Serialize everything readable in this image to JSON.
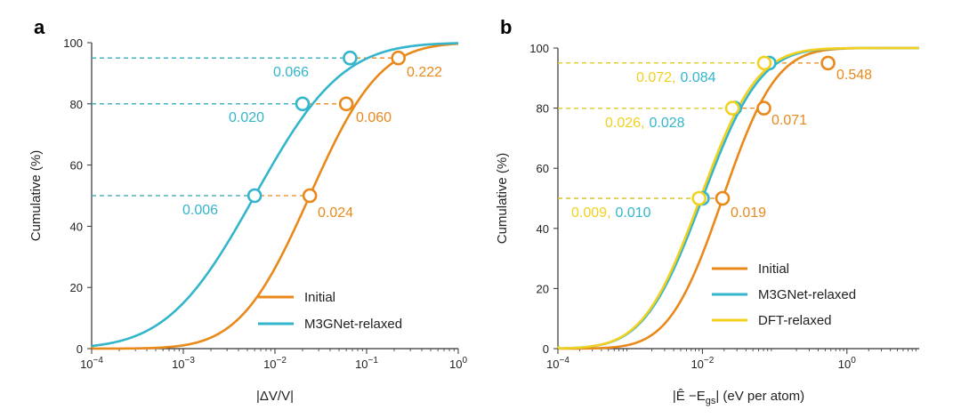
{
  "colors": {
    "initial": "#E8891A",
    "m3gnet": "#33B5CC",
    "dft": "#F2D01E"
  },
  "chart_data": [
    {
      "panel": "a",
      "type": "line",
      "xscale": "log",
      "xlim_exp": [
        -4,
        0
      ],
      "ylim": [
        0,
        100
      ],
      "xlabel": "|ΔV/V|",
      "ylabel": "Cumulative (%)",
      "xticks": [
        {
          "exp": -4,
          "label": "10",
          "sup": "−4"
        },
        {
          "exp": -3,
          "label": "10",
          "sup": "−3"
        },
        {
          "exp": -2,
          "label": "10",
          "sup": "−2"
        },
        {
          "exp": -1,
          "label": "10",
          "sup": "−1"
        },
        {
          "exp": 0,
          "label": "10",
          "sup": "0"
        }
      ],
      "yticks": [
        0,
        20,
        40,
        60,
        80,
        100
      ],
      "legend": [
        "Initial",
        "M3GNet-relaxed"
      ],
      "series": [
        {
          "name": "Initial",
          "color_key": "initial",
          "median_exp": -1.62,
          "sigma": 0.6
        },
        {
          "name": "M3GNet-relaxed",
          "color_key": "m3gnet",
          "median_exp": -2.22,
          "sigma": 0.75
        }
      ],
      "markers": [
        {
          "series": "Initial",
          "x": 0.024,
          "y": 50
        },
        {
          "series": "Initial",
          "x": 0.06,
          "y": 80
        },
        {
          "series": "Initial",
          "x": 0.222,
          "y": 95
        },
        {
          "series": "M3GNet-relaxed",
          "x": 0.006,
          "y": 50
        },
        {
          "series": "M3GNet-relaxed",
          "x": 0.02,
          "y": 80
        },
        {
          "series": "M3GNet-relaxed",
          "x": 0.066,
          "y": 95
        }
      ],
      "annotations": [
        {
          "text": "0.006",
          "color_key": "m3gnet"
        },
        {
          "text": "0.024",
          "color_key": "initial"
        },
        {
          "text": "0.020",
          "color_key": "m3gnet"
        },
        {
          "text": "0.060",
          "color_key": "initial"
        },
        {
          "text": "0.066",
          "color_key": "m3gnet"
        },
        {
          "text": "0.222",
          "color_key": "initial"
        }
      ]
    },
    {
      "panel": "b",
      "type": "line",
      "xscale": "log",
      "xlim_exp": [
        -4,
        1
      ],
      "ylim": [
        0,
        100
      ],
      "xlabel": "|Ê −E",
      "xlabel_sub": "gs",
      "xlabel_tail": "| (eV per atom)",
      "ylabel": "Cumulative (%)",
      "xticks": [
        {
          "exp": -4,
          "label": "10",
          "sup": "−4"
        },
        {
          "exp": -2,
          "label": "10",
          "sup": "−2"
        },
        {
          "exp": 0,
          "label": "10",
          "sup": "0"
        }
      ],
      "yticks": [
        0,
        20,
        40,
        60,
        80,
        100
      ],
      "legend": [
        "Initial",
        "M3GNet-relaxed",
        "DFT-relaxed"
      ],
      "series": [
        {
          "name": "Initial",
          "color_key": "initial",
          "median_exp": -1.72,
          "sigma": 0.58
        },
        {
          "name": "M3GNet-relaxed",
          "color_key": "m3gnet",
          "median_exp": -2.0,
          "sigma": 0.63
        },
        {
          "name": "DFT-relaxed",
          "color_key": "dft",
          "median_exp": -2.03,
          "sigma": 0.62
        }
      ],
      "markers": [
        {
          "series": "Initial",
          "x": 0.019,
          "y": 50
        },
        {
          "series": "Initial",
          "x": 0.071,
          "y": 80
        },
        {
          "series": "Initial",
          "x": 0.548,
          "y": 95
        },
        {
          "series": "M3GNet-relaxed",
          "x": 0.01,
          "y": 50
        },
        {
          "series": "M3GNet-relaxed",
          "x": 0.028,
          "y": 80
        },
        {
          "series": "M3GNet-relaxed",
          "x": 0.084,
          "y": 95
        },
        {
          "series": "DFT-relaxed",
          "x": 0.009,
          "y": 50
        },
        {
          "series": "DFT-relaxed",
          "x": 0.026,
          "y": 80
        },
        {
          "series": "DFT-relaxed",
          "x": 0.072,
          "y": 95
        }
      ],
      "annotations": [
        {
          "parts": [
            {
              "text": "0.009,",
              "color_key": "dft"
            },
            {
              "text": "0.010",
              "color_key": "m3gnet"
            }
          ],
          "extra": {
            "text": "0.019",
            "color_key": "initial"
          }
        },
        {
          "parts": [
            {
              "text": "0.026,",
              "color_key": "dft"
            },
            {
              "text": "0.028",
              "color_key": "m3gnet"
            }
          ],
          "extra": {
            "text": "0.071",
            "color_key": "initial"
          }
        },
        {
          "parts": [
            {
              "text": "0.072,",
              "color_key": "dft"
            },
            {
              "text": "0.084",
              "color_key": "m3gnet"
            }
          ],
          "extra": {
            "text": "0.548",
            "color_key": "initial"
          }
        }
      ]
    }
  ]
}
